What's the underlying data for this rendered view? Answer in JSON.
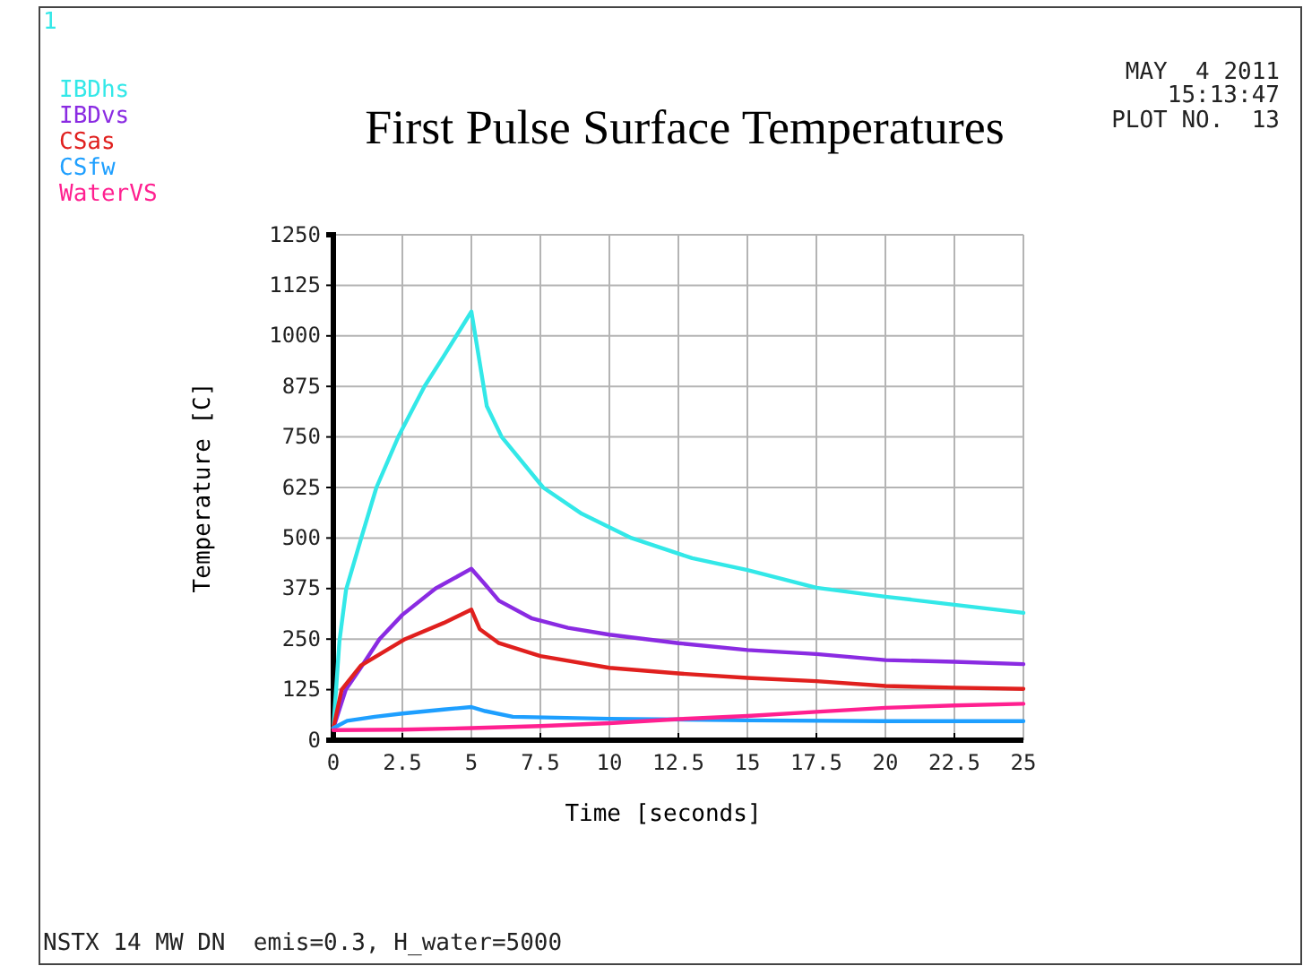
{
  "chart_data": {
    "type": "line",
    "title": "First Pulse Surface Temperatures",
    "xlabel": "Time [seconds]",
    "ylabel": "Temperature [C]",
    "annotations": [
      "1",
      "MAY  4 2011",
      "15:13:47",
      "PLOT NO.  13",
      "NSTX 14 MW DN  emis=0.3, H_water=5000"
    ],
    "xlim": [
      0,
      25
    ],
    "xticks": [
      0,
      2.5,
      5,
      7.5,
      10,
      12.5,
      15,
      17.5,
      20,
      22.5,
      25
    ],
    "ylim": [
      0,
      1250
    ],
    "yticks": [
      0,
      125,
      250,
      375,
      500,
      625,
      750,
      875,
      1000,
      1125,
      1250
    ],
    "grid": true,
    "legend": "top left",
    "marker": "none",
    "line_style": "solid",
    "series": [
      {
        "name": "IBDhs",
        "color": "#33e8e8",
        "x": [
          0,
          0.22,
          0.46,
          1,
          1.56,
          2.35,
          3.3,
          4,
          5,
          5.56,
          6.1,
          7.6,
          9,
          10.8,
          13,
          15,
          17.5,
          20,
          22.5,
          25
        ],
        "values": [
          30,
          245,
          372,
          498,
          625,
          750,
          875,
          950,
          1060,
          826,
          750,
          625,
          560,
          500,
          450,
          421,
          377,
          355,
          335,
          315
        ]
      },
      {
        "name": "IBDvs",
        "color": "#8a2be2",
        "x": [
          0,
          0.45,
          1,
          1.67,
          2.5,
          3.7,
          5,
          5.5,
          6,
          7.2,
          8.5,
          10,
          12.5,
          15,
          17.5,
          20,
          22.5,
          25
        ],
        "values": [
          30,
          125,
          180,
          250,
          310,
          375,
          424,
          385,
          345,
          301,
          278,
          261,
          240,
          223,
          213,
          198,
          194,
          188
        ]
      },
      {
        "name": "CSas",
        "color": "#e0201e",
        "x": [
          0,
          0.3,
          1,
          2.6,
          4,
          5,
          5.3,
          6,
          7.5,
          10,
          12.5,
          15,
          17.5,
          20,
          22.5,
          25
        ],
        "values": [
          30,
          125,
          185,
          250,
          290,
          323,
          275,
          240,
          208,
          179,
          165,
          154,
          146,
          134,
          130,
          127
        ]
      },
      {
        "name": "CSfw",
        "color": "#1e9fff",
        "x": [
          0,
          0.5,
          1.5,
          2.5,
          4,
          5,
          5.5,
          6.5,
          10,
          15,
          20,
          25
        ],
        "values": [
          30,
          48,
          58,
          66,
          76,
          82,
          72,
          58,
          53,
          49,
          47,
          47
        ]
      },
      {
        "name": "WaterVS",
        "color": "#ff2090",
        "x": [
          0,
          2.5,
          5,
          7.5,
          10,
          12.5,
          15,
          17.5,
          20,
          22.5,
          25
        ],
        "values": [
          25,
          26,
          30,
          35,
          42,
          52,
          60,
          70,
          80,
          86,
          90
        ]
      }
    ]
  }
}
